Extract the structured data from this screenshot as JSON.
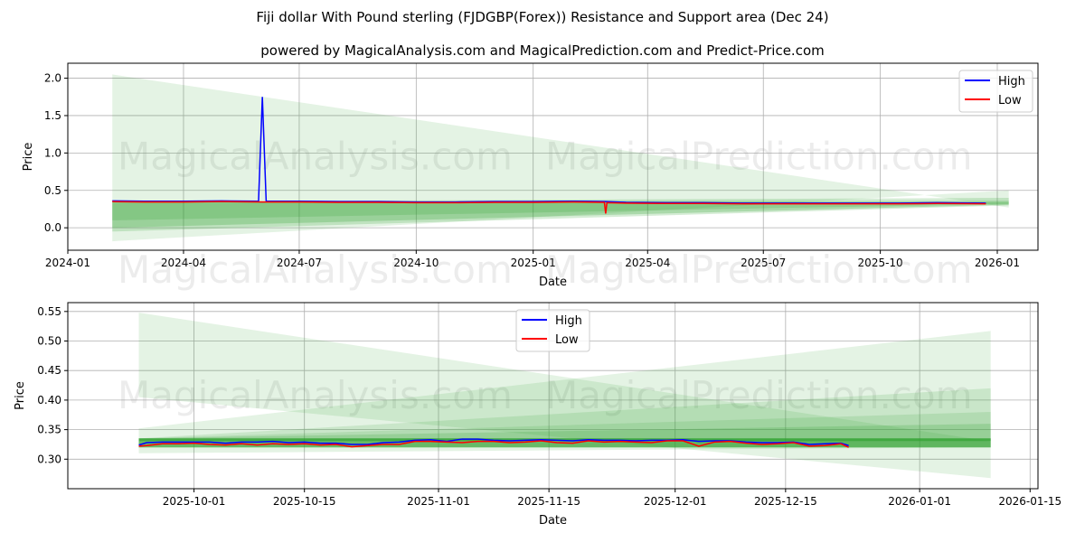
{
  "title": "Fiji dollar With Pound sterling (FJDGBP(Forex)) Resistance and Support area (Dec 24)",
  "subtitle": "powered by MagicalAnalysis.com and MagicalPrediction.com and Predict-Price.com",
  "watermarks": [
    "MagicalAnalysis.com",
    "MagicalPrediction.com"
  ],
  "colors": {
    "high": "#0000ff",
    "low": "#ff0000",
    "band": "#2ca02c"
  },
  "chart_data": [
    {
      "type": "line",
      "xlabel": "Date",
      "ylabel": "Price",
      "ylim": [
        -0.3,
        2.2
      ],
      "xlim": [
        "2024-01-01",
        "2026-02-02"
      ],
      "yticks": [
        0.0,
        0.5,
        1.0,
        1.5,
        2.0
      ],
      "ytick_labels": [
        "0.0",
        "0.5",
        "1.0",
        "1.5",
        "2.0"
      ],
      "xticks": [
        "2024-01-01",
        "2024-04-01",
        "2024-07-01",
        "2024-10-01",
        "2025-01-01",
        "2025-04-01",
        "2025-07-01",
        "2025-10-01",
        "2026-01-01"
      ],
      "xtick_labels": [
        "2024-01",
        "2024-04",
        "2024-07",
        "2024-10",
        "2025-01",
        "2025-04",
        "2025-07",
        "2025-10",
        "2026-01"
      ],
      "legend": {
        "placement": "top-right",
        "entries": [
          "High",
          "Low"
        ]
      },
      "grid": true,
      "bands": [
        {
          "x": [
            "2024-02-05",
            "2026-01-10"
          ],
          "start": [
            -0.18,
            2.05
          ],
          "end": [
            0.5,
            0.27
          ],
          "opacity": 0.13
        },
        {
          "x": [
            "2024-02-05",
            "2026-01-10"
          ],
          "start": [
            -0.05,
            0.35
          ],
          "end": [
            0.3,
            0.4
          ],
          "opacity": 0.2
        },
        {
          "x": [
            "2024-02-05",
            "2026-01-10"
          ],
          "start": [
            0.0,
            0.35
          ],
          "end": [
            0.31,
            0.36
          ],
          "opacity": 0.25
        },
        {
          "x": [
            "2024-02-05",
            "2026-01-10"
          ],
          "start": [
            0.1,
            0.35
          ],
          "end": [
            0.32,
            0.34
          ],
          "opacity": 0.2
        }
      ],
      "series": [
        {
          "name": "High",
          "x": [
            "2024-02-05",
            "2024-03-01",
            "2024-04-01",
            "2024-05-01",
            "2024-05-30",
            "2024-06-02",
            "2024-06-05",
            "2024-07-01",
            "2024-08-01",
            "2024-09-01",
            "2024-10-01",
            "2024-11-01",
            "2024-12-01",
            "2025-01-01",
            "2025-02-01",
            "2025-02-27",
            "2025-03-15",
            "2025-04-15",
            "2025-05-15",
            "2025-06-15",
            "2025-07-15",
            "2025-08-15",
            "2025-09-15",
            "2025-10-15",
            "2025-11-15",
            "2025-12-23"
          ],
          "y": [
            0.36,
            0.355,
            0.355,
            0.36,
            0.355,
            1.75,
            0.355,
            0.355,
            0.35,
            0.35,
            0.345,
            0.345,
            0.35,
            0.35,
            0.355,
            0.35,
            0.34,
            0.335,
            0.335,
            0.33,
            0.33,
            0.33,
            0.33,
            0.33,
            0.335,
            0.33
          ]
        },
        {
          "name": "Low",
          "x": [
            "2024-02-05",
            "2024-03-01",
            "2024-04-01",
            "2024-05-01",
            "2024-06-02",
            "2024-07-01",
            "2024-08-01",
            "2024-09-01",
            "2024-10-01",
            "2024-11-01",
            "2024-12-01",
            "2025-01-01",
            "2025-02-01",
            "2025-02-26",
            "2025-02-27",
            "2025-02-28",
            "2025-03-15",
            "2025-04-15",
            "2025-05-15",
            "2025-06-15",
            "2025-07-15",
            "2025-08-15",
            "2025-09-15",
            "2025-10-15",
            "2025-11-15",
            "2025-12-23"
          ],
          "y": [
            0.35,
            0.345,
            0.345,
            0.35,
            0.345,
            0.345,
            0.34,
            0.34,
            0.335,
            0.335,
            0.34,
            0.34,
            0.345,
            0.34,
            0.19,
            0.335,
            0.33,
            0.325,
            0.325,
            0.32,
            0.32,
            0.32,
            0.32,
            0.32,
            0.325,
            0.32
          ]
        }
      ]
    },
    {
      "type": "line",
      "xlabel": "Date",
      "ylabel": "Price",
      "ylim": [
        0.25,
        0.565
      ],
      "xlim": [
        "2025-09-15",
        "2026-01-16"
      ],
      "yticks": [
        0.3,
        0.35,
        0.4,
        0.45,
        0.5,
        0.55
      ],
      "ytick_labels": [
        "0.30",
        "0.35",
        "0.40",
        "0.45",
        "0.50",
        "0.55"
      ],
      "xticks": [
        "2025-10-01",
        "2025-10-15",
        "2025-11-01",
        "2025-11-15",
        "2025-12-01",
        "2025-12-15",
        "2026-01-01",
        "2026-01-15"
      ],
      "xtick_labels": [
        "2025-10-01",
        "2025-10-15",
        "2025-11-01",
        "2025-11-15",
        "2025-12-01",
        "2025-12-15",
        "2026-01-01",
        "2026-01-15"
      ],
      "legend": {
        "placement": "upper-center",
        "entries": [
          "High",
          "Low"
        ]
      },
      "grid": true,
      "bands": [
        {
          "x": [
            "2025-09-24",
            "2026-01-10"
          ],
          "start": [
            0.405,
            0.548
          ],
          "end": [
            0.268,
            0.33
          ],
          "opacity": 0.13
        },
        {
          "x": [
            "2025-09-24",
            "2026-01-10"
          ],
          "start": [
            0.31,
            0.352
          ],
          "end": [
            0.32,
            0.517
          ],
          "opacity": 0.13
        },
        {
          "x": [
            "2025-09-24",
            "2026-01-10"
          ],
          "start": [
            0.32,
            0.335
          ],
          "end": [
            0.32,
            0.42
          ],
          "opacity": 0.15
        },
        {
          "x": [
            "2025-09-24",
            "2026-01-10"
          ],
          "start": [
            0.32,
            0.335
          ],
          "end": [
            0.32,
            0.38
          ],
          "opacity": 0.15
        },
        {
          "x": [
            "2025-09-24",
            "2026-01-10"
          ],
          "start": [
            0.32,
            0.335
          ],
          "end": [
            0.32,
            0.36
          ],
          "opacity": 0.2
        },
        {
          "x": [
            "2025-09-24",
            "2026-01-10"
          ],
          "start": [
            0.32,
            0.335
          ],
          "end": [
            0.32,
            0.335
          ],
          "opacity": 0.45
        }
      ],
      "level": 0.333,
      "series": [
        {
          "name": "High",
          "x": [
            "2025-09-24",
            "2025-09-25",
            "2025-09-27",
            "2025-09-29",
            "2025-10-01",
            "2025-10-03",
            "2025-10-05",
            "2025-10-07",
            "2025-10-09",
            "2025-10-11",
            "2025-10-13",
            "2025-10-15",
            "2025-10-17",
            "2025-10-19",
            "2025-10-21",
            "2025-10-23",
            "2025-10-25",
            "2025-10-27",
            "2025-10-29",
            "2025-10-31",
            "2025-11-02",
            "2025-11-04",
            "2025-11-06",
            "2025-11-08",
            "2025-11-10",
            "2025-11-12",
            "2025-11-14",
            "2025-11-16",
            "2025-11-18",
            "2025-11-20",
            "2025-11-22",
            "2025-11-24",
            "2025-11-26",
            "2025-11-28",
            "2025-11-30",
            "2025-12-02",
            "2025-12-04",
            "2025-12-06",
            "2025-12-08",
            "2025-12-10",
            "2025-12-12",
            "2025-12-14",
            "2025-12-16",
            "2025-12-18",
            "2025-12-20",
            "2025-12-22",
            "2025-12-23"
          ],
          "y": [
            0.324,
            0.328,
            0.329,
            0.329,
            0.329,
            0.329,
            0.327,
            0.329,
            0.329,
            0.33,
            0.328,
            0.329,
            0.327,
            0.327,
            0.325,
            0.325,
            0.328,
            0.329,
            0.332,
            0.333,
            0.33,
            0.334,
            0.334,
            0.332,
            0.331,
            0.332,
            0.333,
            0.332,
            0.331,
            0.333,
            0.332,
            0.332,
            0.331,
            0.332,
            0.332,
            0.333,
            0.33,
            0.331,
            0.331,
            0.329,
            0.328,
            0.328,
            0.329,
            0.325,
            0.326,
            0.327,
            0.323
          ]
        },
        {
          "name": "Low",
          "x": [
            "2025-09-24",
            "2025-09-25",
            "2025-09-27",
            "2025-09-29",
            "2025-10-01",
            "2025-10-03",
            "2025-10-05",
            "2025-10-07",
            "2025-10-09",
            "2025-10-11",
            "2025-10-13",
            "2025-10-15",
            "2025-10-17",
            "2025-10-19",
            "2025-10-21",
            "2025-10-23",
            "2025-10-25",
            "2025-10-27",
            "2025-10-29",
            "2025-10-31",
            "2025-11-02",
            "2025-11-04",
            "2025-11-06",
            "2025-11-08",
            "2025-11-10",
            "2025-11-12",
            "2025-11-14",
            "2025-11-16",
            "2025-11-18",
            "2025-11-20",
            "2025-11-22",
            "2025-11-24",
            "2025-11-26",
            "2025-11-28",
            "2025-11-30",
            "2025-12-02",
            "2025-12-04",
            "2025-12-06",
            "2025-12-08",
            "2025-12-10",
            "2025-12-12",
            "2025-12-14",
            "2025-12-16",
            "2025-12-18",
            "2025-12-20",
            "2025-12-22",
            "2025-12-23"
          ],
          "y": [
            0.322,
            0.323,
            0.326,
            0.326,
            0.327,
            0.325,
            0.324,
            0.326,
            0.324,
            0.326,
            0.325,
            0.326,
            0.324,
            0.325,
            0.321,
            0.323,
            0.325,
            0.325,
            0.33,
            0.33,
            0.329,
            0.328,
            0.33,
            0.33,
            0.328,
            0.329,
            0.331,
            0.328,
            0.327,
            0.331,
            0.329,
            0.33,
            0.329,
            0.328,
            0.331,
            0.331,
            0.322,
            0.329,
            0.33,
            0.327,
            0.325,
            0.326,
            0.328,
            0.322,
            0.323,
            0.326,
            0.32
          ]
        }
      ]
    }
  ]
}
